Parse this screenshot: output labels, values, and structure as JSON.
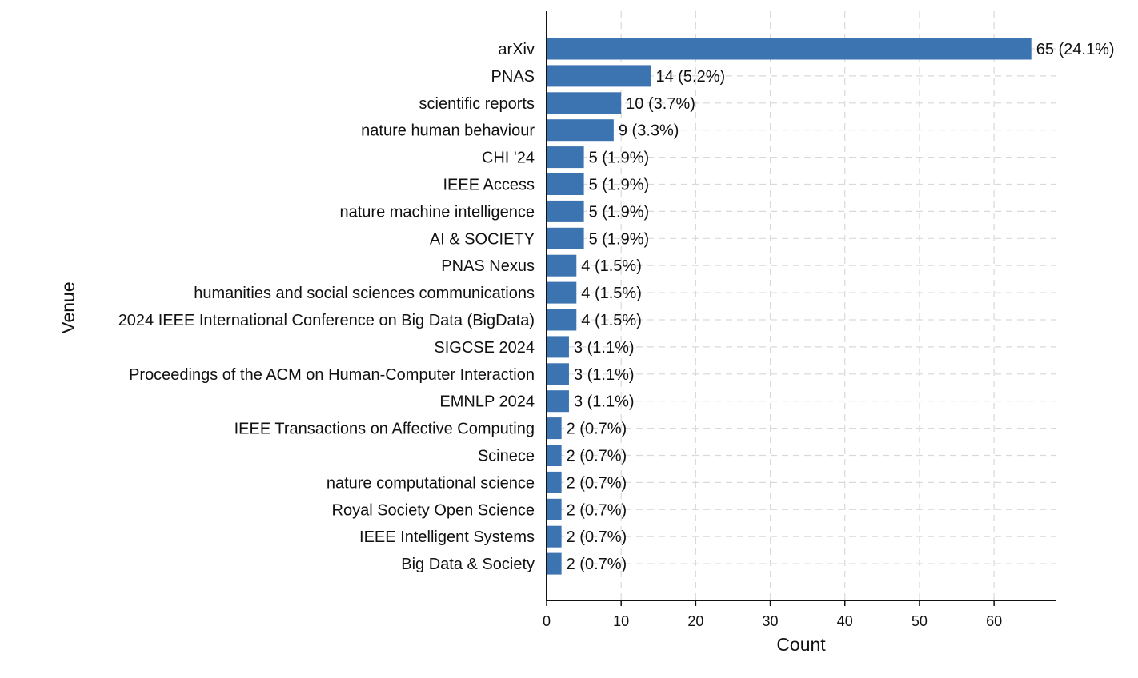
{
  "chart_data": {
    "type": "bar",
    "orientation": "horizontal",
    "categories": [
      "arXiv",
      "PNAS",
      "scientific reports",
      "nature human behaviour",
      "CHI '24",
      "IEEE Access",
      "nature machine intelligence",
      "AI & SOCIETY",
      "PNAS Nexus",
      "humanities and social sciences communications",
      "2024 IEEE International Conference on Big Data (BigData)",
      "SIGCSE 2024",
      "Proceedings of the ACM on Human-Computer Interaction",
      "EMNLP 2024",
      "IEEE Transactions on Affective Computing",
      "Scinece",
      "nature computational science",
      "Royal Society Open Science",
      "IEEE Intelligent Systems",
      "Big Data & Society"
    ],
    "values": [
      65,
      14,
      10,
      9,
      5,
      5,
      5,
      5,
      4,
      4,
      4,
      3,
      3,
      3,
      2,
      2,
      2,
      2,
      2,
      2
    ],
    "data_labels": [
      "65 (24.1%)",
      "14 (5.2%)",
      "10 (3.7%)",
      "9 (3.3%)",
      "5 (1.9%)",
      "5 (1.9%)",
      "5 (1.9%)",
      "5 (1.9%)",
      "4 (1.5%)",
      "4 (1.5%)",
      "4 (1.5%)",
      "3 (1.1%)",
      "3 (1.1%)",
      "3 (1.1%)",
      "2 (0.7%)",
      "2 (0.7%)",
      "2 (0.7%)",
      "2 (0.7%)",
      "2 (0.7%)",
      "2 (0.7%)"
    ],
    "xlabel": "Count",
    "ylabel": "Venue",
    "xlim": [
      0,
      68.25
    ],
    "xticks": [
      0,
      10,
      20,
      30,
      40,
      50,
      60
    ],
    "grid": true,
    "bar_color": "#3b74b0"
  }
}
